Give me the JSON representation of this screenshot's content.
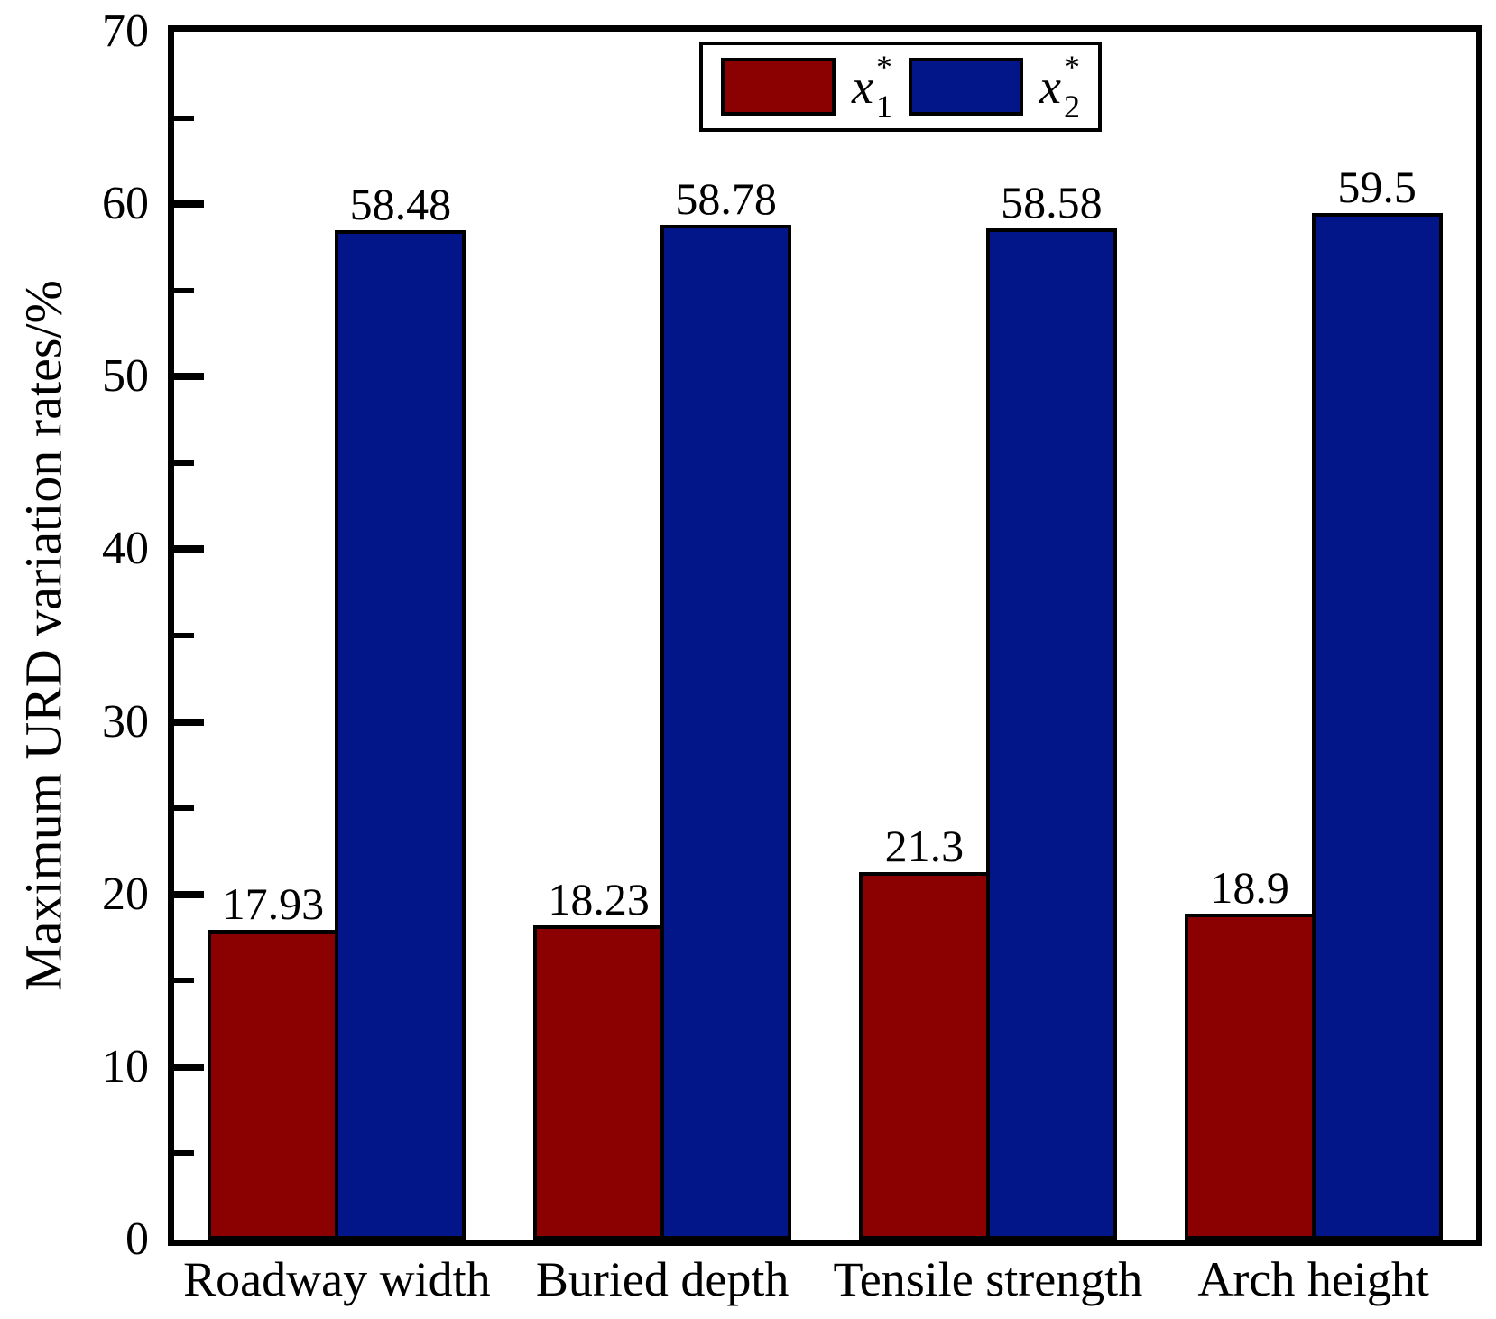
{
  "figure": {
    "background": "#ffffff",
    "frame_color": "#000000"
  },
  "y_axis": {
    "title": "Maximum URD variation rates/%",
    "min": 0,
    "max": 70,
    "major_tick_step": 10,
    "minor_tick_step": 5,
    "major_tick_labels": [
      "0",
      "10",
      "20",
      "30",
      "40",
      "50",
      "60",
      "70"
    ]
  },
  "legend": {
    "items": [
      {
        "base": "x",
        "sub": "1",
        "sup": "*",
        "color": "#8B0000"
      },
      {
        "base": "x",
        "sub": "2",
        "sup": "*",
        "color": "#021689"
      }
    ]
  },
  "chart_data": {
    "type": "bar",
    "categories": [
      "Roadway width",
      "Buried depth",
      "Tensile strength",
      "Arch height"
    ],
    "series": [
      {
        "name": "x1*",
        "color": "#8B0000",
        "values": [
          17.93,
          18.23,
          21.3,
          18.9
        ],
        "value_labels": [
          "17.93",
          "18.23",
          "21.3",
          "18.9"
        ]
      },
      {
        "name": "x2*",
        "color": "#021689",
        "values": [
          58.48,
          58.78,
          58.58,
          59.5
        ],
        "value_labels": [
          "58.48",
          "58.78",
          "58.58",
          "59.5"
        ]
      }
    ],
    "title": "",
    "xlabel": "",
    "ylabel": "Maximum URD variation rates/%",
    "ylim": [
      0,
      70
    ],
    "grid": false,
    "legend_position": "top-center",
    "bar_edge_color": "#000000",
    "value_labels_shown": true
  }
}
